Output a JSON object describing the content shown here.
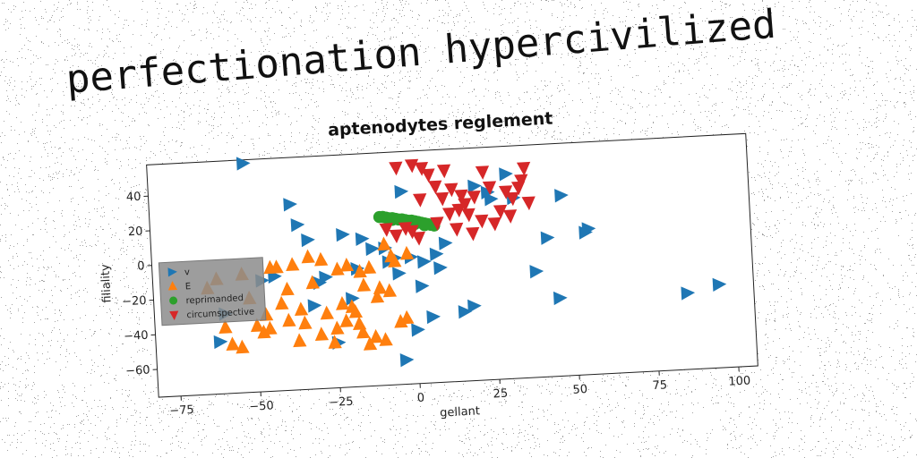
{
  "page_title": "perfectionation hypercivilized",
  "chart_data": {
    "type": "scatter",
    "title": "aptenodytes reglement",
    "xlabel": "gellant",
    "ylabel": "filiality",
    "xlim": [
      -82,
      106
    ],
    "ylim": [
      -76,
      58
    ],
    "xticks": [
      -75,
      -50,
      -25,
      0,
      25,
      50,
      75,
      100
    ],
    "yticks": [
      -60,
      -40,
      -20,
      0,
      20,
      40
    ],
    "grid": false,
    "legend": {
      "placement": "center-left",
      "entries": [
        "v",
        "E",
        "reprimanded",
        "circumspective"
      ]
    },
    "series": [
      {
        "name": "v",
        "marker": "triangle-right",
        "color": "#1f77b4",
        "points": [
          [
            -52,
            56
          ],
          [
            -38,
            31
          ],
          [
            -36,
            19
          ],
          [
            -33,
            10
          ],
          [
            -30,
            -15
          ],
          [
            -22,
            12
          ],
          [
            -18,
            -8
          ],
          [
            -16,
            9
          ],
          [
            -13,
            3
          ],
          [
            -9,
            3
          ],
          [
            -8,
            -5
          ],
          [
            -6,
            -3
          ],
          [
            -5,
            -12
          ],
          [
            -3,
            35
          ],
          [
            -4,
            -62
          ],
          [
            -1,
            -3
          ],
          [
            2,
            -20
          ],
          [
            3,
            -6
          ],
          [
            5,
            -38
          ],
          [
            7,
            -2
          ],
          [
            8,
            -10
          ],
          [
            10,
            4
          ],
          [
            15,
            -36
          ],
          [
            18,
            -33
          ],
          [
            20,
            36
          ],
          [
            24,
            32
          ],
          [
            25,
            28
          ],
          [
            30,
            42
          ],
          [
            32,
            28
          ],
          [
            38,
            -15
          ],
          [
            42,
            4
          ],
          [
            45,
            -31
          ],
          [
            47,
            28
          ],
          [
            55,
            8
          ],
          [
            54,
            6
          ],
          [
            85,
            -32
          ],
          [
            95,
            -28
          ],
          [
            -62,
            -46
          ],
          [
            -48,
            -12
          ],
          [
            -28,
            -12
          ],
          [
            -60,
            -30
          ],
          [
            -32,
            -28
          ],
          [
            -20,
            -25
          ],
          [
            0,
            -45
          ],
          [
            -25,
            -50
          ],
          [
            -44,
            -10
          ]
        ]
      },
      {
        "name": "E",
        "marker": "triangle-up",
        "color": "#ff7f0e",
        "points": [
          [
            -65,
            -15
          ],
          [
            -60,
            -38
          ],
          [
            -58,
            -48
          ],
          [
            -55,
            -50
          ],
          [
            -52,
            -22
          ],
          [
            -50,
            -38
          ],
          [
            -48,
            -42
          ],
          [
            -46,
            -40
          ],
          [
            -45,
            -5
          ],
          [
            -43,
            -5
          ],
          [
            -42,
            -26
          ],
          [
            -40,
            -36
          ],
          [
            -40,
            -18
          ],
          [
            -38,
            -4
          ],
          [
            -36,
            -30
          ],
          [
            -35,
            -38
          ],
          [
            -33,
            0
          ],
          [
            -32,
            -15
          ],
          [
            -30,
            -45
          ],
          [
            -28,
            -33
          ],
          [
            -26,
            -50
          ],
          [
            -25,
            -42
          ],
          [
            -24,
            -8
          ],
          [
            -23,
            -28
          ],
          [
            -22,
            -38
          ],
          [
            -21,
            -6
          ],
          [
            -20,
            -30
          ],
          [
            -19,
            -33
          ],
          [
            -18,
            -40
          ],
          [
            -17,
            -45
          ],
          [
            -17,
            -10
          ],
          [
            -16,
            -18
          ],
          [
            -15,
            -52
          ],
          [
            -14,
            -8
          ],
          [
            -13,
            -48
          ],
          [
            -12,
            -25
          ],
          [
            -11,
            -20
          ],
          [
            -10,
            -50
          ],
          [
            -9,
            5
          ],
          [
            -8,
            -22
          ],
          [
            -7,
            -2
          ],
          [
            -6,
            -5
          ],
          [
            -5,
            -40
          ],
          [
            -3,
            -38
          ],
          [
            -2,
            -1
          ],
          [
            -62,
            -10
          ],
          [
            -54,
            -8
          ],
          [
            -47,
            -32
          ],
          [
            -37,
            -48
          ],
          [
            -29,
            -2
          ]
        ]
      },
      {
        "name": "reprimanded",
        "marker": "circle",
        "color": "#2ca02c",
        "points": [
          [
            -10,
            21
          ],
          [
            -9,
            21
          ],
          [
            -8,
            20.5
          ],
          [
            -7,
            20
          ],
          [
            -6,
            20
          ],
          [
            -5,
            19.5
          ],
          [
            -4,
            19
          ],
          [
            -3,
            19
          ],
          [
            -2,
            18.5
          ],
          [
            -1,
            18
          ],
          [
            0,
            18
          ],
          [
            1,
            17.5
          ],
          [
            2,
            17
          ],
          [
            3,
            16.5
          ],
          [
            4,
            16
          ],
          [
            5,
            15.5
          ],
          [
            6,
            15
          ],
          [
            7,
            14.5
          ],
          [
            -6,
            19
          ],
          [
            -2,
            17
          ],
          [
            1,
            16
          ],
          [
            4,
            15
          ]
        ]
      },
      {
        "name": "circumspective",
        "marker": "triangle-down",
        "color": "#d62728",
        "points": [
          [
            -4,
            49
          ],
          [
            1,
            50
          ],
          [
            4,
            48
          ],
          [
            6,
            44
          ],
          [
            8,
            37
          ],
          [
            10,
            30
          ],
          [
            12,
            21
          ],
          [
            13,
            35
          ],
          [
            15,
            23
          ],
          [
            16,
            31
          ],
          [
            17,
            26
          ],
          [
            18,
            20
          ],
          [
            20,
            30
          ],
          [
            22,
            16
          ],
          [
            23,
            44
          ],
          [
            25,
            35
          ],
          [
            26,
            14
          ],
          [
            28,
            21
          ],
          [
            30,
            32
          ],
          [
            32,
            28
          ],
          [
            34,
            34
          ],
          [
            35,
            38
          ],
          [
            36,
            45
          ],
          [
            37,
            25
          ],
          [
            -5,
            10
          ],
          [
            -2,
            14
          ],
          [
            0,
            12
          ],
          [
            2,
            8
          ],
          [
            8,
            16
          ],
          [
            -8,
            14
          ],
          [
            3,
            30
          ],
          [
            11,
            46
          ],
          [
            19,
            9
          ],
          [
            31,
            18
          ],
          [
            14,
            12
          ]
        ]
      }
    ]
  }
}
